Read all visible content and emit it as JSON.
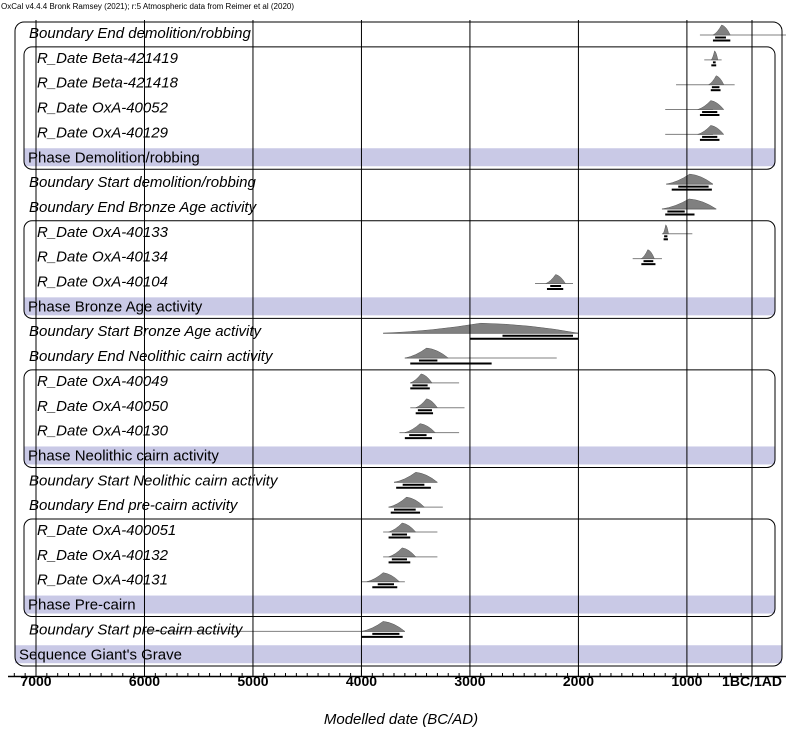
{
  "credit": "OxCal v4.4.4 Bronk Ramsey (2021); r:5 Atmospheric data from Reimer et al (2020)",
  "chart_data": {
    "type": "oxcal-multiplot",
    "xlabel": "Modelled date (BC/AD)",
    "x_ticks": [
      {
        "value": -7000,
        "label": "7000"
      },
      {
        "value": -6000,
        "label": "6000"
      },
      {
        "value": -5000,
        "label": "5000"
      },
      {
        "value": -4000,
        "label": "4000"
      },
      {
        "value": -3000,
        "label": "3000"
      },
      {
        "value": -2000,
        "label": "2000"
      },
      {
        "value": -1000,
        "label": "1000"
      },
      {
        "value": -400,
        "label": "1BC/1AD"
      }
    ],
    "xlim": [
      -7250,
      -380
    ],
    "sequence": {
      "label": "Sequence Giant's Grave"
    },
    "rows": [
      {
        "label": "Boundary End demolition/robbing",
        "kind": "boundary",
        "prior": [
          -880,
          -10
        ],
        "post": [
          -760,
          -600
        ],
        "range68": [
          -740,
          -640
        ],
        "range95": [
          -760,
          -600
        ]
      },
      {
        "label": "R_Date Beta-421419",
        "kind": "date",
        "prior": [
          -840,
          -680
        ],
        "post": [
          -775,
          -715
        ],
        "range68": [
          -760,
          -735
        ],
        "range95": [
          -775,
          -730
        ]
      },
      {
        "label": "R_Date Beta-421418",
        "kind": "date",
        "prior": [
          -1100,
          -560
        ],
        "post": [
          -800,
          -660
        ],
        "range68": [
          -770,
          -700
        ],
        "range95": [
          -780,
          -690
        ]
      },
      {
        "label": "R_Date OxA-40052",
        "kind": "date",
        "prior": [
          -1200,
          -760
        ],
        "post": [
          -900,
          -660
        ],
        "range68": [
          -860,
          -720
        ],
        "range95": [
          -880,
          -700
        ]
      },
      {
        "label": "R_Date OxA-40129",
        "kind": "date",
        "prior": [
          -1200,
          -760
        ],
        "post": [
          -900,
          -660
        ],
        "range68": [
          -860,
          -720
        ],
        "range95": [
          -880,
          -700
        ]
      },
      {
        "label": "Phase Demolition/robbing",
        "kind": "phase"
      },
      {
        "label": "Boundary Start demolition/robbing",
        "kind": "boundary",
        "prior": [
          -1190,
          -760
        ],
        "post": [
          -1190,
          -760
        ],
        "range68": [
          -1080,
          -800
        ],
        "range95": [
          -1140,
          -770
        ]
      },
      {
        "label": "Boundary End Bronze Age activity",
        "kind": "boundary",
        "prior": [
          -1230,
          -730
        ],
        "post": [
          -1230,
          -730
        ],
        "range68": [
          -1180,
          -1020
        ],
        "range95": [
          -1200,
          -930
        ]
      },
      {
        "label": "R_Date OxA-40133",
        "kind": "date",
        "prior": [
          -1230,
          -950
        ],
        "post": [
          -1220,
          -1170
        ],
        "range68": [
          -1210,
          -1180
        ],
        "range95": [
          -1215,
          -1175
        ]
      },
      {
        "label": "R_Date OxA-40134",
        "kind": "date",
        "prior": [
          -1500,
          -1230
        ],
        "post": [
          -1420,
          -1300
        ],
        "range68": [
          -1400,
          -1310
        ],
        "range95": [
          -1420,
          -1290
        ]
      },
      {
        "label": "R_Date OxA-40104",
        "kind": "date",
        "prior": [
          -2400,
          -2050
        ],
        "post": [
          -2300,
          -2120
        ],
        "range68": [
          -2260,
          -2160
        ],
        "range95": [
          -2290,
          -2140
        ]
      },
      {
        "label": "Phase Bronze Age activity",
        "kind": "phase"
      },
      {
        "label": "Boundary Start Bronze Age activity",
        "kind": "boundary",
        "prior": [
          -3800,
          -2000
        ],
        "post": [
          -3800,
          -2000
        ],
        "range68": [
          -2700,
          -2050
        ],
        "range95": [
          -3000,
          -2000
        ]
      },
      {
        "label": "Boundary End Neolithic cairn activity",
        "kind": "boundary",
        "prior": [
          -3600,
          -2200
        ],
        "post": [
          -3600,
          -3200
        ],
        "range68": [
          -3470,
          -3300
        ],
        "range95": [
          -3550,
          -2800
        ]
      },
      {
        "label": "R_Date OxA-40049",
        "kind": "date",
        "prior": [
          -3550,
          -3100
        ],
        "post": [
          -3550,
          -3350
        ],
        "range68": [
          -3530,
          -3390
        ],
        "range95": [
          -3550,
          -3370
        ]
      },
      {
        "label": "R_Date OxA-40050",
        "kind": "date",
        "prior": [
          -3550,
          -3050
        ],
        "post": [
          -3500,
          -3300
        ],
        "range68": [
          -3480,
          -3350
        ],
        "range95": [
          -3500,
          -3340
        ]
      },
      {
        "label": "R_Date OxA-40130",
        "kind": "date",
        "prior": [
          -3650,
          -3100
        ],
        "post": [
          -3600,
          -3320
        ],
        "range68": [
          -3560,
          -3400
        ],
        "range95": [
          -3600,
          -3350
        ]
      },
      {
        "label": "Phase Neolithic cairn activity",
        "kind": "phase"
      },
      {
        "label": "Boundary Start Neolithic cairn activity",
        "kind": "boundary",
        "prior": [
          -3700,
          -3300
        ],
        "post": [
          -3700,
          -3300
        ],
        "range68": [
          -3620,
          -3420
        ],
        "range95": [
          -3680,
          -3360
        ]
      },
      {
        "label": "Boundary End pre-cairn activity",
        "kind": "boundary",
        "prior": [
          -3750,
          -3250
        ],
        "post": [
          -3750,
          -3420
        ],
        "range68": [
          -3700,
          -3500
        ],
        "range95": [
          -3730,
          -3460
        ]
      },
      {
        "label": "R_Date OxA-400051",
        "kind": "date",
        "prior": [
          -3800,
          -3300
        ],
        "post": [
          -3750,
          -3500
        ],
        "range68": [
          -3720,
          -3580
        ],
        "range95": [
          -3750,
          -3550
        ]
      },
      {
        "label": "R_Date OxA-40132",
        "kind": "date",
        "prior": [
          -3800,
          -3300
        ],
        "post": [
          -3750,
          -3500
        ],
        "range68": [
          -3720,
          -3580
        ],
        "range95": [
          -3750,
          -3550
        ]
      },
      {
        "label": "R_Date OxA-40131",
        "kind": "date",
        "prior": [
          -4000,
          -3600
        ],
        "post": [
          -3950,
          -3650
        ],
        "range68": [
          -3850,
          -3700
        ],
        "range95": [
          -3900,
          -3670
        ]
      },
      {
        "label": "Phase Pre-cairn",
        "kind": "phase"
      },
      {
        "label": "Boundary Start pre-cairn activity",
        "kind": "boundary",
        "prior": [
          -6000,
          -3600
        ],
        "post": [
          -4000,
          -3600
        ],
        "range68": [
          -3900,
          -3650
        ],
        "range95": [
          -4000,
          -3620
        ]
      },
      {
        "label": "Sequence Giant's Grave",
        "kind": "sequence"
      }
    ]
  },
  "colors": {
    "band": "#c9c9e6",
    "curve": "#808080",
    "frame": "#000000"
  }
}
